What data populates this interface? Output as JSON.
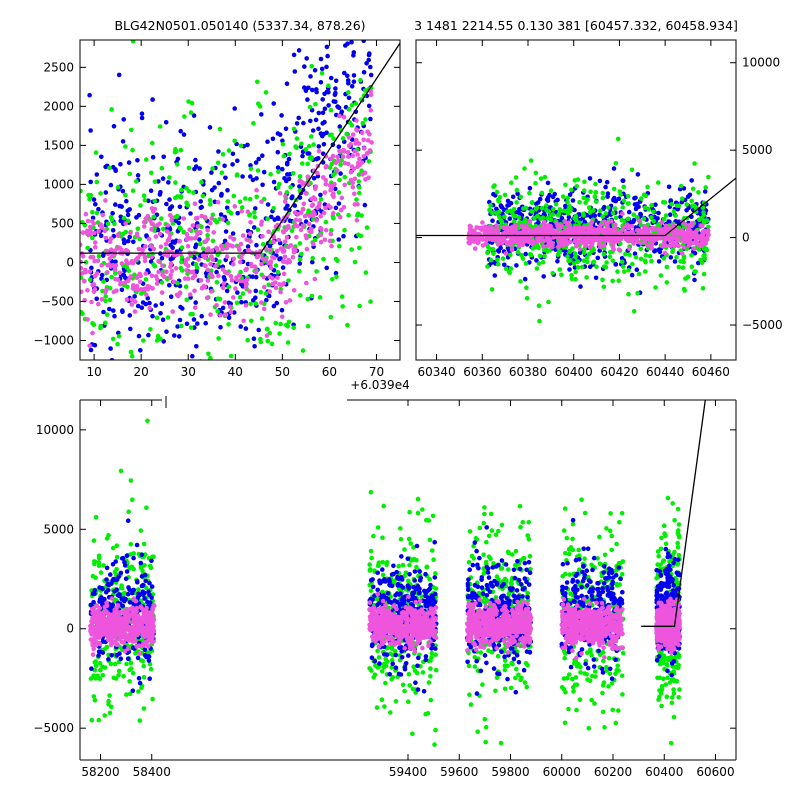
{
  "title_left": "BLG42N0501.050140 (5337.34, 878.26)",
  "title_right": "3 1481 2214.55 0.130 381 [60457.332, 60458.934]",
  "colors": {
    "blue": "#0000ee",
    "green": "#00ee00",
    "magenta": "#ee55dd",
    "line": "#000000"
  },
  "chart_data": [
    {
      "name": "zoom-panel",
      "type": "scatter",
      "xlim": [
        60397,
        60465
      ],
      "ylim": [
        -1250,
        2850
      ],
      "x_offset_label": "+6.039e4",
      "x_ticks": [
        {
          "v": 60400,
          "label": "10"
        },
        {
          "v": 60410,
          "label": "20"
        },
        {
          "v": 60420,
          "label": "30"
        },
        {
          "v": 60430,
          "label": "40"
        },
        {
          "v": 60440,
          "label": "50"
        },
        {
          "v": 60450,
          "label": "60"
        },
        {
          "v": 60460,
          "label": "70"
        }
      ],
      "y_ticks": [
        {
          "v": -1000,
          "label": "−1000"
        },
        {
          "v": -500,
          "label": "−500"
        },
        {
          "v": 0,
          "label": "0"
        },
        {
          "v": 500,
          "label": "500"
        },
        {
          "v": 1000,
          "label": "1000"
        },
        {
          "v": 1500,
          "label": "1500"
        },
        {
          "v": 2000,
          "label": "2000"
        },
        {
          "v": 2500,
          "label": "2500"
        }
      ],
      "y_axis_side": "left",
      "series": [
        {
          "color": "blue",
          "count": 650,
          "xrange": [
            60399,
            60459
          ],
          "base": 100,
          "spread": 750,
          "rise_start": 60433,
          "rise_slope": 95
        },
        {
          "color": "green",
          "count": 480,
          "xrange": [
            60397,
            60459
          ],
          "base": 150,
          "spread": 850,
          "rise_start": 60440,
          "rise_slope": 60
        },
        {
          "color": "magenta",
          "count": 560,
          "xrange": [
            60397,
            60459
          ],
          "base": 30,
          "spread": 330,
          "rise_start": 60438,
          "rise_slope": 70
        }
      ],
      "model_line": [
        [
          60397,
          120
        ],
        [
          60435.4,
          120
        ],
        [
          60466,
          2900
        ]
      ]
    },
    {
      "name": "season-panel",
      "type": "scatter",
      "xlim": [
        60331,
        60471
      ],
      "ylim": [
        -7000,
        11300
      ],
      "x_ticks": [
        {
          "v": 60340,
          "label": "60340"
        },
        {
          "v": 60360,
          "label": "60360"
        },
        {
          "v": 60380,
          "label": "60380"
        },
        {
          "v": 60400,
          "label": "60400"
        },
        {
          "v": 60420,
          "label": "60420"
        },
        {
          "v": 60440,
          "label": "60440"
        },
        {
          "v": 60460,
          "label": "60460"
        }
      ],
      "y_ticks": [
        {
          "v": -5000,
          "label": "−5000"
        },
        {
          "v": 0,
          "label": "0"
        },
        {
          "v": 5000,
          "label": "5000"
        },
        {
          "v": 10000,
          "label": "10000"
        }
      ],
      "y_axis_side": "right",
      "series": [
        {
          "color": "blue",
          "count": 700,
          "xrange": [
            60362,
            60459
          ],
          "base": 500,
          "spread": 1100
        },
        {
          "color": "green",
          "count": 550,
          "xrange": [
            60362,
            60459
          ],
          "base": 300,
          "spread": 1500
        },
        {
          "color": "magenta",
          "count": 750,
          "xrange": [
            60354,
            60459
          ],
          "base": 120,
          "spread": 330
        }
      ],
      "model_line": [
        [
          60331,
          120
        ],
        [
          60440,
          120
        ],
        [
          60471,
          3400
        ]
      ]
    },
    {
      "name": "full-panel",
      "type": "scatter",
      "xlim": [
        58120,
        60680
      ],
      "ylim": [
        -6600,
        11500
      ],
      "x_ticks": [
        {
          "v": 58200,
          "label": "58200"
        },
        {
          "v": 58400,
          "label": "58400"
        },
        {
          "v": 59400,
          "label": "59400"
        },
        {
          "v": 59600,
          "label": "59600"
        },
        {
          "v": 59800,
          "label": "59800"
        },
        {
          "v": 60000,
          "label": "60000"
        },
        {
          "v": 60200,
          "label": "60200"
        },
        {
          "v": 60400,
          "label": "60400"
        },
        {
          "v": 60600,
          "label": "60600"
        }
      ],
      "y_ticks": [
        {
          "v": -5000,
          "label": "−5000"
        },
        {
          "v": 0,
          "label": "0"
        },
        {
          "v": 5000,
          "label": "5000"
        },
        {
          "v": 10000,
          "label": "10000"
        }
      ],
      "y_axis_side": "left",
      "axis_break": [
        58440,
        59240
      ],
      "seasons": [
        [
          58160,
          58410
        ],
        [
          59250,
          59510
        ],
        [
          59630,
          59880
        ],
        [
          60000,
          60240
        ],
        [
          60370,
          60460
        ]
      ],
      "series": [
        {
          "color": "green",
          "count": 1400,
          "base": 600,
          "spread": 2300
        },
        {
          "color": "blue",
          "count": 1400,
          "base": 800,
          "spread": 1300
        },
        {
          "color": "magenta",
          "count": 2400,
          "base": 150,
          "spread": 480
        }
      ],
      "model_line": [
        [
          60310,
          120
        ],
        [
          60440,
          120
        ],
        [
          60560,
          11500
        ]
      ]
    }
  ]
}
